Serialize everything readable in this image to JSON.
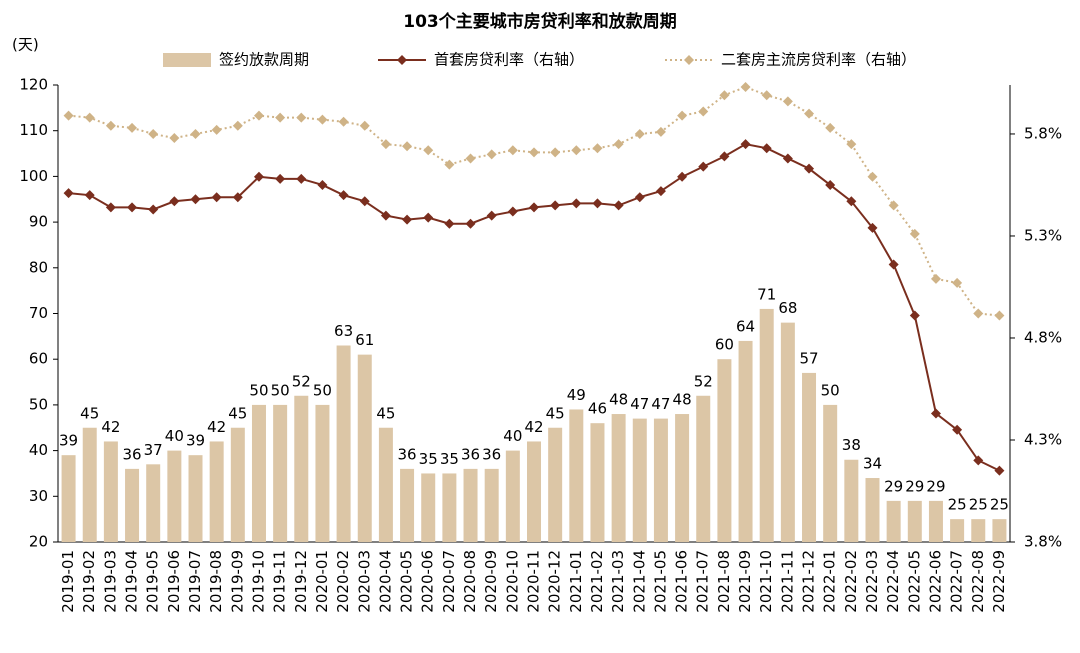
{
  "chart_data": {
    "type": "bar",
    "title": "103个主要城市房贷利率和放款周期",
    "y_label": "(天)",
    "categories": [
      "2019-01",
      "2019-02",
      "2019-03",
      "2019-04",
      "2019-05",
      "2019-06",
      "2019-07",
      "2019-08",
      "2019-09",
      "2019-10",
      "2019-11",
      "2019-12",
      "2020-01",
      "2020-02",
      "2020-03",
      "2020-04",
      "2020-05",
      "2020-06",
      "2020-07",
      "2020-08",
      "2020-09",
      "2020-10",
      "2020-11",
      "2020-12",
      "2021-01",
      "2021-02",
      "2021-03",
      "2021-04",
      "2021-05",
      "2021-06",
      "2021-07",
      "2021-08",
      "2021-09",
      "2021-10",
      "2021-11",
      "2021-12",
      "2022-01",
      "2022-02",
      "2022-03",
      "2022-04",
      "2022-05",
      "2022-06",
      "2022-07",
      "2022-08",
      "2022-09"
    ],
    "series": [
      {
        "name": "签约放款周期",
        "type": "bar",
        "color": "#dcc6a6",
        "values": [
          39,
          45,
          42,
          36,
          37,
          40,
          39,
          42,
          45,
          50,
          50,
          52,
          50,
          63,
          61,
          45,
          36,
          35,
          35,
          36,
          36,
          40,
          42,
          45,
          49,
          46,
          48,
          47,
          47,
          48,
          52,
          60,
          64,
          71,
          68,
          57,
          50,
          38,
          34,
          29,
          29,
          29,
          25,
          25,
          25
        ]
      },
      {
        "name": "首套房贷利率（右轴）",
        "type": "line",
        "axis": "y2",
        "color": "#7a2e1e",
        "dash": "solid",
        "values": [
          5.51,
          5.5,
          5.44,
          5.44,
          5.43,
          5.47,
          5.48,
          5.49,
          5.49,
          5.59,
          5.58,
          5.58,
          5.55,
          5.5,
          5.47,
          5.4,
          5.38,
          5.39,
          5.36,
          5.36,
          5.4,
          5.42,
          5.44,
          5.45,
          5.46,
          5.46,
          5.45,
          5.49,
          5.52,
          5.59,
          5.64,
          5.69,
          5.75,
          5.73,
          5.68,
          5.63,
          5.55,
          5.47,
          5.34,
          5.16,
          4.91,
          4.43,
          4.35,
          4.2,
          4.15
        ]
      },
      {
        "name": "二套房主流房贷利率（右轴）",
        "type": "line",
        "axis": "y2",
        "color": "#cfb387",
        "dash": "dotted",
        "values": [
          5.89,
          5.88,
          5.84,
          5.83,
          5.8,
          5.78,
          5.8,
          5.82,
          5.84,
          5.89,
          5.88,
          5.88,
          5.87,
          5.86,
          5.84,
          5.75,
          5.74,
          5.72,
          5.65,
          5.68,
          5.7,
          5.72,
          5.71,
          5.71,
          5.72,
          5.73,
          5.75,
          5.8,
          5.81,
          5.89,
          5.91,
          5.99,
          6.03,
          5.99,
          5.96,
          5.9,
          5.83,
          5.75,
          5.59,
          5.45,
          5.31,
          5.09,
          5.07,
          4.92,
          4.91
        ]
      }
    ],
    "ylim": [
      20,
      120
    ],
    "yticks": [
      20,
      30,
      40,
      50,
      60,
      70,
      80,
      90,
      100,
      110,
      120
    ],
    "y2lim": [
      3.8,
      6.04
    ],
    "y2ticks": [
      {
        "value": 3.8,
        "label": "3.8%"
      },
      {
        "value": 4.3,
        "label": "4.3%"
      },
      {
        "value": 4.8,
        "label": "4.8%"
      },
      {
        "value": 5.3,
        "label": "5.3%"
      },
      {
        "value": 5.8,
        "label": "5.8%"
      }
    ],
    "grid": false
  }
}
